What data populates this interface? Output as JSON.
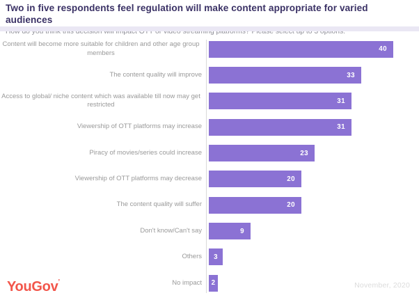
{
  "chart_data": {
    "type": "bar",
    "orientation": "horizontal",
    "title": "Two in five respondents feel regulation will make content appropriate for varied audiences",
    "subtitle": "How do you think this decision will impact OTT or video streaming platforms? Please select up to 3 options.",
    "categories": [
      "Content will become more suitable for children and other age group members",
      "The content quality will improve",
      "Access to global/ niche content which was available till now may get restricted",
      "Viewership of OTT platforms may increase",
      "Piracy of movies/series could increase",
      "Viewership of OTT platforms may decrease",
      "The content quality will suffer",
      "Don't know/Can't say",
      "Others",
      "No impact"
    ],
    "values": [
      40,
      33,
      31,
      31,
      23,
      20,
      20,
      9,
      3,
      2
    ],
    "xlabel": "",
    "ylabel": "",
    "xlim": [
      0,
      44
    ],
    "grid": "off",
    "legend": "none",
    "value_labels": "inside-end",
    "bar_color": "#8B72D4",
    "value_label_color": "#FFFFFF"
  },
  "footer": {
    "brand": "YouGov",
    "trademark_tick": "’",
    "date": "November, 2020"
  },
  "colors": {
    "background": "#FFFFFF",
    "title": "#3A3165",
    "subtitle": "#8E8E97",
    "category_label": "#999999",
    "axis_line": "#D9D9D9",
    "divider_strip": "#EAE7F4",
    "brand_red": "#F2564B",
    "date_gray": "#DBDBDB"
  }
}
